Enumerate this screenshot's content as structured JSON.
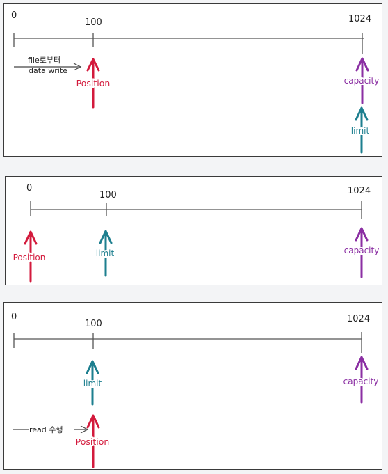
{
  "colors": {
    "position": "#d31a3c",
    "limit": "#1d7f8f",
    "capacity": "#8b2fa3",
    "axis": "#555555",
    "note": "#444444"
  },
  "panels": [
    {
      "ticks": [
        "0",
        "100",
        "1024"
      ],
      "pointers": [
        {
          "label": "Position",
          "at": "100",
          "color_key": "position"
        },
        {
          "label": "capacity",
          "at": "1024",
          "color_key": "capacity"
        },
        {
          "label": "limit",
          "at": "1024",
          "color_key": "limit"
        }
      ],
      "note": {
        "line1": "file로부터",
        "line2": "data write"
      }
    },
    {
      "ticks": [
        "0",
        "100",
        "1024"
      ],
      "pointers": [
        {
          "label": "Position",
          "at": "0",
          "color_key": "position"
        },
        {
          "label": "limit",
          "at": "100",
          "color_key": "limit"
        },
        {
          "label": "capacity",
          "at": "1024",
          "color_key": "capacity"
        }
      ]
    },
    {
      "ticks": [
        "0",
        "100",
        "1024"
      ],
      "pointers": [
        {
          "label": "limit",
          "at": "100",
          "color_key": "limit"
        },
        {
          "label": "capacity",
          "at": "1024",
          "color_key": "capacity"
        },
        {
          "label": "Position",
          "at": "100",
          "color_key": "position"
        }
      ],
      "note": {
        "line1": "read 수행"
      }
    }
  ]
}
